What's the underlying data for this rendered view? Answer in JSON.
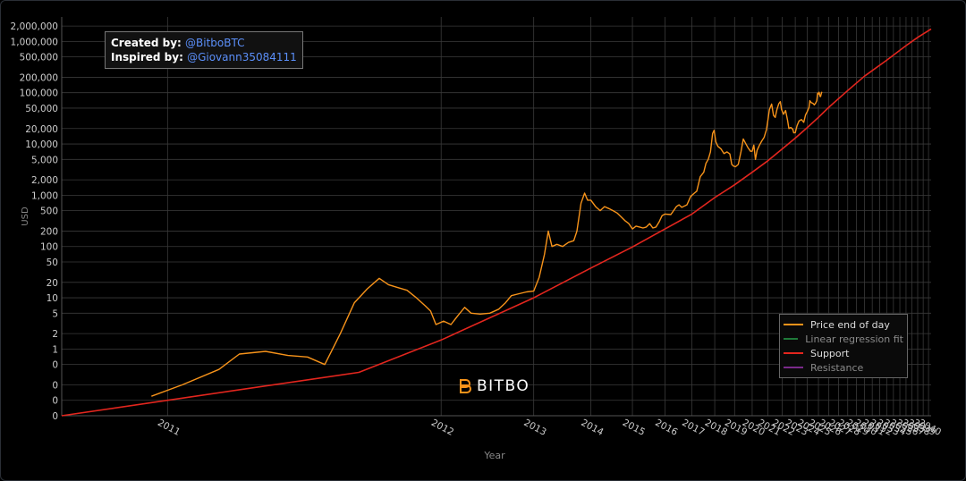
{
  "credits": {
    "created_label": "Created by:",
    "created_handle": "@BitboBTC",
    "inspired_label": "Inspired by:",
    "inspired_handle": "@Giovann35084111"
  },
  "logo": {
    "text": "BITBO",
    "icon": "bitbo-logo-icon"
  },
  "legend": {
    "placement": "bottom-right",
    "items": [
      {
        "label": "Price end of day",
        "color": "#f7931a"
      },
      {
        "label": "Linear regression fit",
        "color": "#1f7a3a"
      },
      {
        "label": "Support",
        "color": "#e3261e"
      },
      {
        "label": "Resistance",
        "color": "#7a2a8a"
      }
    ]
  },
  "colors": {
    "background": "#000000",
    "grid": "#444444",
    "price": "#f7931a",
    "support": "#e3261e",
    "text": "#cccccc"
  },
  "chart_data": {
    "type": "line",
    "xlabel": "Year",
    "ylabel": "USD",
    "yscale": "log",
    "xscale": "log-time",
    "ylim": [
      0.05,
      3000000
    ],
    "xlim": [
      2010.9,
      2040.5
    ],
    "grid": true,
    "y_ticks": [
      {
        "value": 0.05,
        "label": "0"
      },
      {
        "value": 0.1,
        "label": "0"
      },
      {
        "value": 0.2,
        "label": "0"
      },
      {
        "value": 0.5,
        "label": "0"
      },
      {
        "value": 1,
        "label": "1"
      },
      {
        "value": 2,
        "label": "2"
      },
      {
        "value": 5,
        "label": "5"
      },
      {
        "value": 10,
        "label": "10"
      },
      {
        "value": 20,
        "label": "20"
      },
      {
        "value": 50,
        "label": "50"
      },
      {
        "value": 100,
        "label": "100"
      },
      {
        "value": 200,
        "label": "200"
      },
      {
        "value": 500,
        "label": "500"
      },
      {
        "value": 1000,
        "label": "1,000"
      },
      {
        "value": 2000,
        "label": "2,000"
      },
      {
        "value": 5000,
        "label": "5,000"
      },
      {
        "value": 10000,
        "label": "10,000"
      },
      {
        "value": 20000,
        "label": "20,000"
      },
      {
        "value": 50000,
        "label": "50,000"
      },
      {
        "value": 100000,
        "label": "100,000"
      },
      {
        "value": 200000,
        "label": "200,000"
      },
      {
        "value": 500000,
        "label": "500,000"
      },
      {
        "value": 1000000,
        "label": "1,000,000"
      },
      {
        "value": 2000000,
        "label": "2,000,000"
      }
    ],
    "x_ticks": [
      "2011",
      "2012",
      "2013",
      "2014",
      "2015",
      "2016",
      "2017",
      "2018",
      "2019",
      "2020",
      "2021",
      "2022",
      "2023",
      "2024",
      "2025",
      "2026",
      "2027",
      "2028",
      "2029",
      "2030",
      "2031",
      "2032",
      "2033",
      "2034",
      "2035",
      "2036",
      "2037",
      "2038",
      "2039",
      "2040"
    ],
    "series": [
      {
        "name": "Price end of day",
        "color": "#f7931a",
        "points": [
          [
            2010.98,
            0.12
          ],
          [
            2011.02,
            0.2
          ],
          [
            2011.08,
            0.4
          ],
          [
            2011.12,
            0.8
          ],
          [
            2011.18,
            0.9
          ],
          [
            2011.24,
            0.75
          ],
          [
            2011.3,
            0.7
          ],
          [
            2011.36,
            0.5
          ],
          [
            2011.42,
            2
          ],
          [
            2011.48,
            8
          ],
          [
            2011.54,
            15
          ],
          [
            2011.6,
            24
          ],
          [
            2011.65,
            18
          ],
          [
            2011.7,
            16
          ],
          [
            2011.76,
            14
          ],
          [
            2011.82,
            10
          ],
          [
            2011.88,
            7
          ],
          [
            2011.92,
            5.5
          ],
          [
            2011.96,
            3
          ],
          [
            2012.02,
            3.5
          ],
          [
            2012.08,
            3
          ],
          [
            2012.14,
            4.5
          ],
          [
            2012.2,
            6.5
          ],
          [
            2012.26,
            5
          ],
          [
            2012.35,
            4.8
          ],
          [
            2012.45,
            5
          ],
          [
            2012.55,
            6
          ],
          [
            2012.63,
            8
          ],
          [
            2012.7,
            11
          ],
          [
            2012.8,
            12
          ],
          [
            2012.9,
            13
          ],
          [
            2013.0,
            13.5
          ],
          [
            2013.08,
            25
          ],
          [
            2013.16,
            70
          ],
          [
            2013.22,
            200
          ],
          [
            2013.28,
            100
          ],
          [
            2013.36,
            110
          ],
          [
            2013.46,
            100
          ],
          [
            2013.56,
            120
          ],
          [
            2013.66,
            130
          ],
          [
            2013.72,
            200
          ],
          [
            2013.8,
            700
          ],
          [
            2013.87,
            1100
          ],
          [
            2013.93,
            800
          ],
          [
            2014.0,
            800
          ],
          [
            2014.1,
            600
          ],
          [
            2014.2,
            500
          ],
          [
            2014.3,
            600
          ],
          [
            2014.4,
            550
          ],
          [
            2014.5,
            500
          ],
          [
            2014.6,
            450
          ],
          [
            2014.7,
            380
          ],
          [
            2014.8,
            320
          ],
          [
            2014.9,
            280
          ],
          [
            2015.0,
            220
          ],
          [
            2015.1,
            250
          ],
          [
            2015.2,
            240
          ],
          [
            2015.3,
            230
          ],
          [
            2015.4,
            240
          ],
          [
            2015.5,
            280
          ],
          [
            2015.6,
            230
          ],
          [
            2015.7,
            240
          ],
          [
            2015.8,
            300
          ],
          [
            2015.9,
            400
          ],
          [
            2016.0,
            430
          ],
          [
            2016.2,
            420
          ],
          [
            2016.4,
            600
          ],
          [
            2016.5,
            650
          ],
          [
            2016.6,
            580
          ],
          [
            2016.8,
            650
          ],
          [
            2016.95,
            950
          ],
          [
            2017.1,
            1100
          ],
          [
            2017.2,
            1200
          ],
          [
            2017.35,
            2300
          ],
          [
            2017.5,
            2800
          ],
          [
            2017.6,
            4200
          ],
          [
            2017.7,
            5000
          ],
          [
            2017.8,
            7000
          ],
          [
            2017.9,
            16000
          ],
          [
            2017.97,
            18500
          ],
          [
            2018.05,
            11000
          ],
          [
            2018.15,
            9000
          ],
          [
            2018.3,
            8000
          ],
          [
            2018.45,
            6500
          ],
          [
            2018.6,
            7000
          ],
          [
            2018.75,
            6400
          ],
          [
            2018.85,
            4000
          ],
          [
            2018.95,
            3700
          ],
          [
            2019.05,
            3600
          ],
          [
            2019.2,
            4000
          ],
          [
            2019.35,
            7000
          ],
          [
            2019.48,
            12500
          ],
          [
            2019.6,
            10500
          ],
          [
            2019.75,
            8500
          ],
          [
            2019.9,
            7200
          ],
          [
            2020.0,
            7200
          ],
          [
            2020.1,
            9500
          ],
          [
            2020.2,
            5000
          ],
          [
            2020.3,
            7500
          ],
          [
            2020.45,
            9500
          ],
          [
            2020.6,
            11500
          ],
          [
            2020.75,
            13500
          ],
          [
            2020.9,
            19000
          ],
          [
            2021.0,
            29000
          ],
          [
            2021.1,
            47000
          ],
          [
            2021.25,
            60000
          ],
          [
            2021.38,
            36000
          ],
          [
            2021.5,
            33000
          ],
          [
            2021.62,
            47000
          ],
          [
            2021.75,
            61000
          ],
          [
            2021.86,
            67000
          ],
          [
            2021.95,
            47000
          ],
          [
            2022.1,
            38000
          ],
          [
            2022.25,
            45000
          ],
          [
            2022.4,
            29000
          ],
          [
            2022.5,
            20000
          ],
          [
            2022.65,
            21000
          ],
          [
            2022.8,
            19500
          ],
          [
            2022.88,
            16500
          ],
          [
            2023.0,
            16600
          ],
          [
            2023.15,
            23000
          ],
          [
            2023.3,
            28000
          ],
          [
            2023.5,
            30000
          ],
          [
            2023.7,
            26500
          ],
          [
            2023.85,
            37000
          ],
          [
            2024.0,
            43000
          ],
          [
            2024.15,
            52000
          ],
          [
            2024.22,
            70000
          ],
          [
            2024.35,
            64000
          ],
          [
            2024.5,
            62000
          ],
          [
            2024.62,
            58000
          ],
          [
            2024.75,
            63000
          ],
          [
            2024.85,
            70000
          ],
          [
            2024.92,
            98000
          ],
          [
            2025.0,
            94000
          ],
          [
            2025.06,
            102000
          ],
          [
            2025.1,
            96000
          ],
          [
            2025.15,
            85000
          ],
          [
            2025.2,
            84000
          ],
          [
            2025.26,
            94000
          ],
          [
            2025.32,
            104000
          ]
        ]
      },
      {
        "name": "Support",
        "color": "#e3261e",
        "points": [
          [
            2010.9,
            0.05
          ],
          [
            2011.5,
            0.35
          ],
          [
            2012.0,
            1.5
          ],
          [
            2013.0,
            10
          ],
          [
            2014.0,
            38
          ],
          [
            2015.0,
            98
          ],
          [
            2016.0,
            220
          ],
          [
            2017.0,
            430
          ],
          [
            2018.0,
            900
          ],
          [
            2019.0,
            1600
          ],
          [
            2020.0,
            2800
          ],
          [
            2021.0,
            4700
          ],
          [
            2022.0,
            8000
          ],
          [
            2023.0,
            13000
          ],
          [
            2024.0,
            21000
          ],
          [
            2025.0,
            33000
          ],
          [
            2026.0,
            52000
          ],
          [
            2028.0,
            110000
          ],
          [
            2030.0,
            210000
          ],
          [
            2033.0,
            430000
          ],
          [
            2036.0,
            830000
          ],
          [
            2038.0,
            1200000
          ],
          [
            2040.5,
            1750000
          ]
        ]
      }
    ]
  }
}
